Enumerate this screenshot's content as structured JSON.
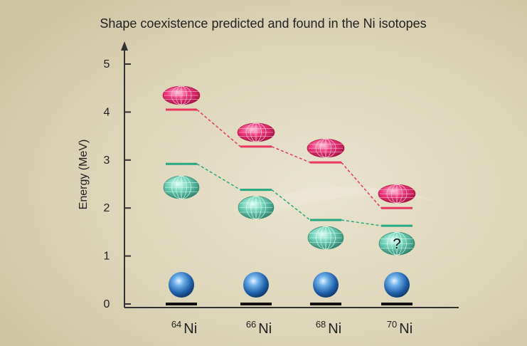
{
  "chart_data": {
    "type": "line",
    "title": "Shape coexistence predicted and found in the Ni isotopes",
    "xlabel": "",
    "ylabel": "Energy (MeV)",
    "ylim": [
      0,
      5
    ],
    "yticks": [
      "0",
      "1",
      "2",
      "3",
      "4",
      "5"
    ],
    "categories": [
      {
        "mass": "64",
        "element": "Ni"
      },
      {
        "mass": "66",
        "element": "Ni"
      },
      {
        "mass": "68",
        "element": "Ni"
      },
      {
        "mass": "70",
        "element": "Ni"
      }
    ],
    "series": [
      {
        "color": "#e8365d",
        "shape": "prolate",
        "values": [
          4.05,
          3.28,
          2.95,
          2.0
        ]
      },
      {
        "color": "#26a882",
        "shape": "oblate",
        "values": [
          2.92,
          2.38,
          1.75,
          1.63
        ]
      },
      {
        "color": "#111111",
        "shape": "spherical",
        "values": [
          0,
          0,
          0,
          0
        ]
      }
    ],
    "annotation": "?",
    "grid": false
  }
}
